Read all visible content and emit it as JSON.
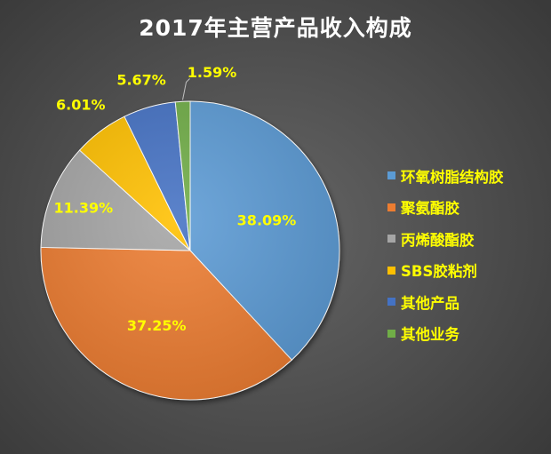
{
  "chart_data": {
    "type": "pie",
    "title": "2017年主营产品收入构成",
    "categories": [
      "环氧树脂结构胶",
      "聚氨酯胶",
      "丙烯酸酯胶",
      "SBS胶粘剂",
      "其他产品",
      "其他业务"
    ],
    "values": [
      38.09,
      37.25,
      11.39,
      6.01,
      5.67,
      1.59
    ],
    "value_labels": [
      "38.09%",
      "37.25%",
      "11.39%",
      "6.01%",
      "5.67%",
      "1.59%"
    ],
    "colors": [
      "#5b9bd5",
      "#ed7d31",
      "#a5a5a5",
      "#ffc000",
      "#4472c4",
      "#70ad47"
    ],
    "start_angle": "12 o'clock",
    "direction": "clockwise",
    "legend_position": "right",
    "label_color": "#ffff00"
  }
}
